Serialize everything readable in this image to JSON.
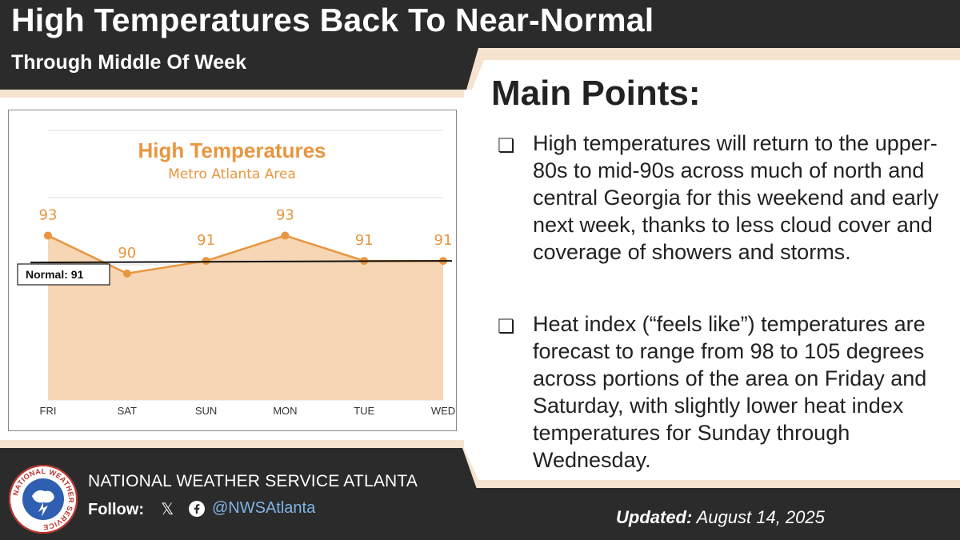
{
  "header": {
    "title": "High Temperatures Back To Near-Normal",
    "subtitle": "Through Middle Of Week"
  },
  "main_points": {
    "heading": "Main Points:",
    "bullets": [
      "High temperatures will return to the upper-80s to mid-90s across much of north and central Georgia for this weekend and early next week, thanks to less cloud cover and coverage of showers and storms.",
      "Heat index (“feels like”) temperatures are forecast to range from 98 to 105 degrees across portions of the area on Friday and Saturday, with slightly lower heat index temperatures for Sunday through Wednesday."
    ],
    "bullet_marker": "❏"
  },
  "footer": {
    "office": "NATIONAL WEATHER SERVICE ATLANTA",
    "follow_label": "Follow:",
    "x_icon": "𝕏",
    "handle": "@NWSAtlanta",
    "updated_label": "Updated:",
    "updated_date": "August 14, 2025",
    "logo_text": "NATIONAL WEATHER SERVICE"
  },
  "colors": {
    "accent": "#e8963f",
    "fill": "#f6d6b4",
    "band": "#f5e3cf",
    "dark": "#2b2b2b",
    "handle": "#7fb4e6"
  },
  "chart_data": {
    "type": "area",
    "title": "High Temperatures",
    "subtitle": "Metro Atlanta Area",
    "categories": [
      "FRI",
      "SAT",
      "SUN",
      "MON",
      "TUE",
      "WED"
    ],
    "series": [
      {
        "name": "High Temperature",
        "values": [
          93,
          90,
          91,
          93,
          91,
          91
        ]
      }
    ],
    "normal": {
      "label": "Normal: 91",
      "value": 91
    },
    "ylim": [
      80,
      96
    ],
    "grid": true
  }
}
